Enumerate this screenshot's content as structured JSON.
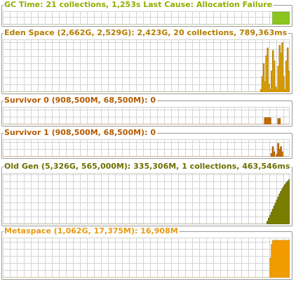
{
  "colors": {
    "grid": "#d4d4d4",
    "frame": "#9a9a9a"
  },
  "panels": [
    {
      "key": "gc",
      "title": "GC Time: 21 collections, 1,253s  Last Cause: Allocation Failure",
      "title_color": "#8fae00",
      "fill_color": "#8bc41e",
      "fill_edge": "#6a9a14",
      "activity": [
        0,
        0,
        0,
        0,
        0,
        0,
        0,
        0,
        0,
        0,
        0,
        0,
        0,
        0,
        0,
        0,
        0,
        0,
        0,
        0,
        0,
        0,
        0,
        0,
        0,
        0,
        0,
        0,
        0,
        0,
        0,
        0,
        0,
        0,
        0,
        0,
        0,
        0,
        0,
        0,
        0,
        0,
        0,
        0,
        0,
        0,
        0,
        0,
        0,
        0,
        0,
        0,
        0,
        0,
        0,
        0,
        0,
        0,
        0,
        0,
        0,
        0,
        0,
        0,
        0,
        0,
        0,
        0,
        0,
        0,
        0,
        0,
        0,
        0,
        0,
        0,
        0,
        0,
        0,
        0,
        0,
        0,
        0,
        0,
        0,
        0,
        0,
        0,
        0,
        0,
        0,
        0,
        0,
        0,
        0,
        0,
        0,
        0,
        0,
        0,
        0,
        0,
        0,
        0,
        0,
        0,
        0,
        0,
        0,
        0,
        0,
        0,
        0,
        0,
        0,
        0,
        0,
        0,
        0,
        0,
        0,
        0,
        0,
        0,
        0,
        0,
        0,
        0,
        0,
        0,
        0,
        0,
        0,
        0,
        0,
        0,
        0,
        0,
        0,
        0,
        0,
        0,
        0,
        0,
        0,
        0,
        0,
        0,
        0,
        0,
        0,
        0,
        0,
        0,
        0,
        0,
        0,
        0,
        0,
        0,
        0,
        0,
        0,
        0,
        0,
        0,
        0,
        0,
        0,
        0,
        0,
        0,
        0,
        0,
        0,
        0,
        0,
        0,
        0,
        0,
        0,
        0,
        0,
        0,
        0,
        0,
        0,
        0,
        0,
        0,
        0,
        0,
        0,
        0,
        0,
        0,
        0,
        0,
        0,
        0,
        0,
        0,
        0,
        0,
        1,
        1,
        1,
        1,
        1,
        1,
        1,
        1,
        1,
        1,
        1,
        1,
        1
      ]
    },
    {
      "key": "eden",
      "title": "Eden Space (2,662G, 2,529G): 2,423G, 20 collections, 789,363ms",
      "title_color": "#b47c00",
      "fill_color": "#d49a00",
      "fill_edge": "#a87400",
      "activity": [
        0,
        0,
        0,
        0,
        0,
        0,
        0,
        0,
        0,
        0,
        0,
        0,
        0,
        0,
        0,
        0,
        0,
        0,
        0,
        0,
        0,
        0,
        0,
        0,
        0,
        0,
        0,
        0,
        0,
        0,
        0,
        0,
        0,
        0,
        0,
        0,
        0,
        0,
        0,
        0,
        0,
        0,
        0,
        0,
        0,
        0,
        0,
        0,
        0,
        0,
        0,
        0,
        0,
        0,
        0,
        0,
        0,
        0,
        0,
        0,
        0,
        0,
        0,
        0,
        0,
        0,
        0,
        0,
        0,
        0,
        0,
        0,
        0,
        0,
        0,
        0,
        0,
        0,
        0,
        0,
        0,
        0,
        0,
        0,
        0,
        0,
        0,
        0,
        0,
        0,
        0,
        0,
        0,
        0,
        0,
        0,
        0,
        0,
        0,
        0,
        0,
        0,
        0,
        0,
        0,
        0,
        0,
        0,
        0,
        0,
        0,
        0,
        0,
        0,
        0,
        0,
        0,
        0,
        0,
        0,
        0,
        0,
        0,
        0,
        0,
        0,
        0,
        0,
        0,
        0,
        0,
        0,
        0,
        0,
        0,
        0,
        0,
        0,
        0,
        0,
        0,
        0,
        0,
        0,
        0,
        0,
        0,
        0,
        0,
        0,
        0,
        0,
        0,
        0,
        0,
        0,
        0,
        0,
        0,
        0,
        0,
        0,
        0,
        0,
        0,
        0,
        0,
        0,
        0,
        0,
        0,
        0,
        0,
        0,
        0,
        0,
        0,
        0,
        0,
        0,
        0,
        0,
        0,
        0,
        0,
        0,
        0,
        0,
        0,
        0,
        0,
        0,
        0,
        0.05,
        0.3,
        0.55,
        0.2,
        0.7,
        0.85,
        0.15,
        0.05,
        0.4,
        0.8,
        0.6,
        0.1,
        0.05,
        0.5,
        0.9,
        0.75,
        0.95,
        0.3,
        0.05,
        0.6,
        0.85,
        0.4
      ]
    },
    {
      "key": "s0",
      "title": "Survivor 0 (908,500M, 68,500M): 0",
      "title_color": "#b45a00",
      "fill_color": "#c06a00",
      "fill_edge": "#984e00",
      "activity": [
        0,
        0,
        0,
        0,
        0,
        0,
        0,
        0,
        0,
        0,
        0,
        0,
        0,
        0,
        0,
        0,
        0,
        0,
        0,
        0,
        0,
        0,
        0,
        0,
        0,
        0,
        0,
        0,
        0,
        0,
        0,
        0,
        0,
        0,
        0,
        0,
        0,
        0,
        0,
        0,
        0,
        0,
        0,
        0,
        0,
        0,
        0,
        0,
        0,
        0,
        0,
        0,
        0,
        0,
        0,
        0,
        0,
        0,
        0,
        0,
        0,
        0,
        0,
        0,
        0,
        0,
        0,
        0,
        0,
        0,
        0,
        0,
        0,
        0,
        0,
        0,
        0,
        0,
        0,
        0,
        0,
        0,
        0,
        0,
        0,
        0,
        0,
        0,
        0,
        0,
        0,
        0,
        0,
        0,
        0,
        0,
        0,
        0,
        0,
        0,
        0,
        0,
        0,
        0,
        0,
        0,
        0,
        0,
        0,
        0,
        0,
        0,
        0,
        0,
        0,
        0,
        0,
        0,
        0,
        0,
        0,
        0,
        0,
        0,
        0,
        0,
        0,
        0,
        0,
        0,
        0,
        0,
        0,
        0,
        0,
        0,
        0,
        0,
        0,
        0,
        0,
        0,
        0,
        0,
        0,
        0,
        0,
        0,
        0,
        0,
        0,
        0,
        0,
        0,
        0,
        0,
        0,
        0,
        0,
        0,
        0,
        0,
        0,
        0,
        0,
        0,
        0,
        0,
        0,
        0,
        0,
        0,
        0,
        0,
        0,
        0,
        0,
        0,
        0,
        0,
        0,
        0,
        0,
        0,
        0,
        0,
        0,
        0,
        0,
        0,
        0,
        0,
        0,
        0,
        0,
        0,
        0.4,
        0.4,
        0.4,
        0.4,
        0.4,
        0,
        0,
        0,
        0,
        0,
        0.35,
        0.35,
        0,
        0,
        0,
        0,
        0,
        0,
        0
      ]
    },
    {
      "key": "s1",
      "title": "Survivor 1 (908,500M, 68,500M): 0",
      "title_color": "#b45a00",
      "fill_color": "#c06a00",
      "fill_edge": "#984e00",
      "activity": [
        0,
        0,
        0,
        0,
        0,
        0,
        0,
        0,
        0,
        0,
        0,
        0,
        0,
        0,
        0,
        0,
        0,
        0,
        0,
        0,
        0,
        0,
        0,
        0,
        0,
        0,
        0,
        0,
        0,
        0,
        0,
        0,
        0,
        0,
        0,
        0,
        0,
        0,
        0,
        0,
        0,
        0,
        0,
        0,
        0,
        0,
        0,
        0,
        0,
        0,
        0,
        0,
        0,
        0,
        0,
        0,
        0,
        0,
        0,
        0,
        0,
        0,
        0,
        0,
        0,
        0,
        0,
        0,
        0,
        0,
        0,
        0,
        0,
        0,
        0,
        0,
        0,
        0,
        0,
        0,
        0,
        0,
        0,
        0,
        0,
        0,
        0,
        0,
        0,
        0,
        0,
        0,
        0,
        0,
        0,
        0,
        0,
        0,
        0,
        0,
        0,
        0,
        0,
        0,
        0,
        0,
        0,
        0,
        0,
        0,
        0,
        0,
        0,
        0,
        0,
        0,
        0,
        0,
        0,
        0,
        0,
        0,
        0,
        0,
        0,
        0,
        0,
        0,
        0,
        0,
        0,
        0,
        0,
        0,
        0,
        0,
        0,
        0,
        0,
        0,
        0,
        0,
        0,
        0,
        0,
        0,
        0,
        0,
        0,
        0,
        0,
        0,
        0,
        0,
        0,
        0,
        0,
        0,
        0,
        0,
        0,
        0,
        0,
        0,
        0,
        0,
        0,
        0,
        0,
        0,
        0,
        0,
        0,
        0,
        0,
        0,
        0,
        0,
        0,
        0,
        0,
        0,
        0,
        0,
        0,
        0,
        0,
        0,
        0,
        0,
        0,
        0,
        0,
        0,
        0,
        0,
        0,
        0,
        0,
        0.2,
        0.6,
        0.3,
        0,
        0.15,
        0.8,
        0.45,
        0.6,
        0.3,
        0,
        0,
        0,
        0,
        0
      ]
    },
    {
      "key": "old",
      "title": "Old Gen (5,326G, 565,000M): 335,306M, 1 collections, 463,546ms",
      "title_color": "#6e6e00",
      "fill_color": "#7a7d00",
      "fill_edge": "#5a5c00",
      "activity": [
        0,
        0,
        0,
        0,
        0,
        0,
        0,
        0,
        0,
        0,
        0,
        0,
        0,
        0,
        0,
        0,
        0,
        0,
        0,
        0,
        0,
        0,
        0,
        0,
        0,
        0,
        0,
        0,
        0,
        0,
        0,
        0,
        0,
        0,
        0,
        0,
        0,
        0,
        0,
        0,
        0,
        0,
        0,
        0,
        0,
        0,
        0,
        0,
        0,
        0,
        0,
        0,
        0,
        0,
        0,
        0,
        0,
        0,
        0,
        0,
        0,
        0,
        0,
        0,
        0,
        0,
        0,
        0,
        0,
        0,
        0,
        0,
        0,
        0,
        0,
        0,
        0,
        0,
        0,
        0,
        0,
        0,
        0,
        0,
        0,
        0,
        0,
        0,
        0,
        0,
        0,
        0,
        0,
        0,
        0,
        0,
        0,
        0,
        0,
        0,
        0,
        0,
        0,
        0,
        0,
        0,
        0,
        0,
        0,
        0,
        0,
        0,
        0,
        0,
        0,
        0,
        0,
        0,
        0,
        0,
        0,
        0,
        0,
        0,
        0,
        0,
        0,
        0,
        0,
        0,
        0,
        0,
        0,
        0,
        0,
        0,
        0,
        0,
        0,
        0,
        0,
        0,
        0,
        0,
        0,
        0,
        0,
        0,
        0,
        0,
        0,
        0,
        0,
        0,
        0,
        0,
        0,
        0,
        0,
        0,
        0,
        0,
        0,
        0,
        0,
        0,
        0,
        0,
        0,
        0,
        0,
        0,
        0,
        0,
        0,
        0,
        0,
        0,
        0,
        0,
        0,
        0,
        0,
        0,
        0,
        0,
        0,
        0,
        0,
        0,
        0,
        0,
        0,
        0,
        0,
        0,
        0.06,
        0.12,
        0.18,
        0.24,
        0.3,
        0.36,
        0.42,
        0.48,
        0.54,
        0.6,
        0.65,
        0.7,
        0.74,
        0.78,
        0.82,
        0.85,
        0.88
      ]
    },
    {
      "key": "meta",
      "title": "Metaspace (1,062G, 17,375M): 16,908M",
      "title_color": "#e89a10",
      "fill_color": "#f29b00",
      "fill_edge": "#c47a00",
      "activity": [
        0,
        0,
        0,
        0,
        0,
        0,
        0,
        0,
        0,
        0,
        0,
        0,
        0,
        0,
        0,
        0,
        0,
        0,
        0,
        0,
        0,
        0,
        0,
        0,
        0,
        0,
        0,
        0,
        0,
        0,
        0,
        0,
        0,
        0,
        0,
        0,
        0,
        0,
        0,
        0,
        0,
        0,
        0,
        0,
        0,
        0,
        0,
        0,
        0,
        0,
        0,
        0,
        0,
        0,
        0,
        0,
        0,
        0,
        0,
        0,
        0,
        0,
        0,
        0,
        0,
        0,
        0,
        0,
        0,
        0,
        0,
        0,
        0,
        0,
        0,
        0,
        0,
        0,
        0,
        0,
        0,
        0,
        0,
        0,
        0,
        0,
        0,
        0,
        0,
        0,
        0,
        0,
        0,
        0,
        0,
        0,
        0,
        0,
        0,
        0,
        0,
        0,
        0,
        0,
        0,
        0,
        0,
        0,
        0,
        0,
        0,
        0,
        0,
        0,
        0,
        0,
        0,
        0,
        0,
        0,
        0,
        0,
        0,
        0,
        0,
        0,
        0,
        0,
        0,
        0,
        0,
        0,
        0,
        0,
        0,
        0,
        0,
        0,
        0,
        0,
        0,
        0,
        0,
        0,
        0,
        0,
        0,
        0,
        0,
        0,
        0,
        0,
        0,
        0,
        0,
        0,
        0,
        0,
        0,
        0,
        0,
        0,
        0,
        0,
        0,
        0,
        0,
        0,
        0,
        0,
        0,
        0,
        0,
        0,
        0,
        0,
        0,
        0,
        0,
        0,
        0,
        0,
        0,
        0,
        0,
        0,
        0,
        0,
        0,
        0,
        0,
        0,
        0,
        0,
        0,
        0,
        0,
        0,
        0,
        0,
        0,
        0,
        0.5,
        0.85,
        0.95,
        0.95,
        0.95,
        0.95,
        0.95,
        0.95,
        0.95,
        0.95,
        0.95,
        0.95,
        0.95,
        0.95,
        0.95
      ]
    }
  ]
}
